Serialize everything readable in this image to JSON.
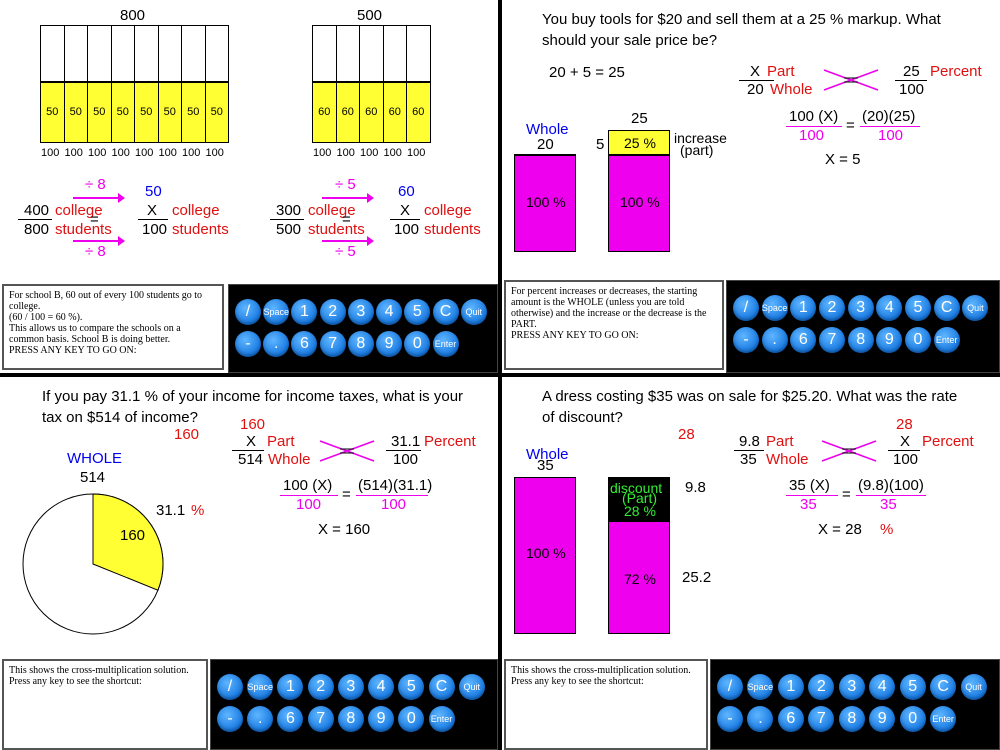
{
  "q1": {
    "bar1_total": "800",
    "bar1_cells": [
      "50",
      "50",
      "50",
      "50",
      "50",
      "50",
      "50",
      "50"
    ],
    "bar1_bottom": [
      "100",
      "100",
      "100",
      "100",
      "100",
      "100",
      "100",
      "100"
    ],
    "bar2_total": "500",
    "bar2_cells": [
      "60",
      "60",
      "60",
      "60",
      "60"
    ],
    "bar2_bottom": [
      "100",
      "100",
      "100",
      "100",
      "100"
    ],
    "p1": {
      "div_top": "÷ 8",
      "div_bot": "÷ 8",
      "result": "50",
      "n1": "400",
      "d1": "800",
      "x": "X",
      "d2": "100",
      "college": "college",
      "students": "students",
      "eq": "="
    },
    "p2": {
      "div_top": "÷ 5",
      "div_bot": "÷ 5",
      "result": "60",
      "n1": "300",
      "d1": "500",
      "x": "X",
      "d2": "100",
      "college": "college",
      "students": "students",
      "eq": "="
    },
    "message": [
      "For school  B,  60  out of every  100  students go to college.",
      "(60 / 100  =  60 %).",
      "This allows us to compare the schools on a common basis.  School  B  is doing better.",
      "PRESS ANY KEY TO GO ON:"
    ]
  },
  "q2": {
    "question": "You buy tools for  $20  and sell them at a  25 %  markup.  What should your sale price be?",
    "sum": "20  +  5  =  25",
    "whole_label": "Whole",
    "whole_value": "20",
    "bar_left_pct": "100 %",
    "bar_right_top": "25",
    "bar_right_side": "5",
    "bar_right_small": "25 %",
    "bar_right_big": "100 %",
    "increase": "increase",
    "part": "(part)",
    "prop": {
      "x": "X",
      "part": "Part",
      "den": "20",
      "whole": "Whole",
      "eq": "=",
      "num2": "25",
      "percent": "Percent",
      "den2": "100"
    },
    "cross": {
      "lhs_num": "100 (X)",
      "lhs_den": "100",
      "eq": "=",
      "rhs_num": "(20)(25)",
      "rhs_den": "100"
    },
    "answer": "X  =  5",
    "message": [
      "For percent increases or decreases,  the starting amount is the  WHOLE  (unless you are told otherwise)  and the increase or the decrease is the PART.",
      "PRESS ANY KEY TO GO ON:"
    ]
  },
  "q3": {
    "question": "If you pay  31.1 %  of your income for income taxes,  what is your tax on  $514  of income?",
    "result": "160",
    "whole_label": "WHOLE",
    "whole_value": "514",
    "slice_value": "160",
    "slice_pct": "31.1",
    "pct_sign": "%",
    "slice_fraction": 0.311,
    "prop": {
      "top": "160",
      "x": "X",
      "part": "Part",
      "den": "514",
      "whole": "Whole",
      "eq": "=",
      "num2": "31.1",
      "percent": "Percent",
      "den2": "100"
    },
    "cross": {
      "lhs_num": "100 (X)",
      "lhs_den": "100",
      "eq": "=",
      "rhs_num": "(514)(31.1)",
      "rhs_den": "100"
    },
    "answer": "X  =  160",
    "message": [
      "This shows the cross-multiplication solution.",
      "Press any key to see the shortcut:"
    ]
  },
  "q4": {
    "question": "A dress costing  $35  was on sale for  $25.20.  What was the rate of discount?",
    "result": "28",
    "whole_label": "Whole",
    "whole_value": "35",
    "left_pct": "100 %",
    "discount": "discount",
    "part": "(Part)",
    "discount_pct": "28 %",
    "right_pct": "72 %",
    "right_top_val": "9.8",
    "right_bot_val": "25.2",
    "prop": {
      "num": "9.8",
      "part": "Part",
      "den": "35",
      "whole": "Whole",
      "eq": "=",
      "top": "28",
      "x": "X",
      "percent": "Percent",
      "den2": "100"
    },
    "cross": {
      "lhs_num": "35 (X)",
      "lhs_den": "35",
      "eq": "=",
      "rhs_num": "(9.8)(100)",
      "rhs_den": "35"
    },
    "answer": "X  =  28",
    "pct_sign": "%",
    "message": [
      "This shows the cross-multiplication solution.",
      "Press any key to see the shortcut:"
    ]
  },
  "keypad": {
    "row1": [
      "/",
      "Space",
      "1",
      "2",
      "3",
      "4",
      "5",
      "C",
      "Quit"
    ],
    "row2": [
      "-",
      ".",
      "6",
      "7",
      "8",
      "9",
      "0",
      "Enter"
    ]
  },
  "colors": {
    "yellow": "#ffff33",
    "magenta": "#ee00ee",
    "red": "#e01010",
    "blue": "#0000ee",
    "key": "#1677e0"
  }
}
